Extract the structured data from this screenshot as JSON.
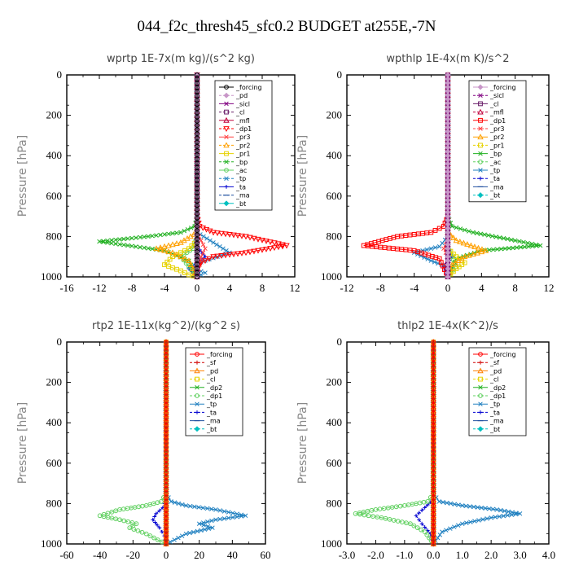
{
  "figure": {
    "title": "044_f2c_thresh45_sfc0.2  BUDGET at255E,-7N"
  },
  "chart_data": [
    {
      "type": "line",
      "title": "wprtp  1E-7x(m kg)/(s^2 kg)",
      "ylabel": "Pressure [hPa]",
      "xlim": [
        -16,
        12
      ],
      "ylim": [
        1000,
        0
      ],
      "y_inverted": true,
      "xticks": [
        "-16",
        "-12",
        "-8",
        "-4",
        "0",
        "4",
        "8",
        "12"
      ],
      "yticks": [
        "0",
        "200",
        "400",
        "600",
        "800",
        "1000"
      ],
      "legend_position": "top-right",
      "series": [
        {
          "name": "_forcing",
          "color": "#000000",
          "marker": "circle",
          "x": [
            0,
            0,
            0,
            0,
            0
          ],
          "y": [
            0,
            250,
            500,
            750,
            1000
          ]
        },
        {
          "name": "_pd",
          "color": "#c896c8",
          "marker": "diamond",
          "x": [
            0,
            0,
            0,
            0
          ],
          "y": [
            0,
            400,
            800,
            1000
          ]
        },
        {
          "name": "_sicl",
          "color": "#800080",
          "marker": "x",
          "x": [
            0,
            0,
            0,
            0
          ],
          "y": [
            0,
            400,
            800,
            1000
          ]
        },
        {
          "name": "_cl",
          "color": "#6a1e6a",
          "marker": "square",
          "x": [
            0,
            0,
            0,
            0
          ],
          "y": [
            0,
            400,
            800,
            1000
          ]
        },
        {
          "name": "_mfl",
          "color": "#c0003c",
          "marker": "triangle-up",
          "x": [
            0,
            0,
            0,
            0
          ],
          "y": [
            0,
            400,
            800,
            1000
          ]
        },
        {
          "name": "_dp1",
          "color": "#ff0000",
          "marker": "triangle-down",
          "x": [
            0,
            0,
            0.3,
            2,
            6,
            11,
            6,
            2,
            0.5,
            0,
            0
          ],
          "y": [
            0,
            700,
            750,
            780,
            800,
            845,
            880,
            900,
            930,
            960,
            1000
          ]
        },
        {
          "name": "_pr3",
          "color": "#ff4040",
          "marker": "x",
          "x": [
            0,
            0,
            0.5,
            1,
            0.5,
            0
          ],
          "y": [
            0,
            780,
            820,
            860,
            900,
            1000
          ]
        },
        {
          "name": "_pr2",
          "color": "#ffa000",
          "marker": "triangle-up",
          "x": [
            0,
            0,
            -2,
            -5,
            -3,
            -1,
            0
          ],
          "y": [
            0,
            780,
            830,
            860,
            880,
            920,
            1000
          ]
        },
        {
          "name": "_pr1",
          "color": "#e6d200",
          "marker": "square",
          "x": [
            0,
            0,
            -1,
            -3,
            -4,
            -2,
            -1,
            0
          ],
          "y": [
            0,
            820,
            860,
            900,
            940,
            970,
            990,
            1000
          ]
        },
        {
          "name": "_bp",
          "color": "#20b020",
          "marker": "x",
          "x": [
            0,
            0,
            -0.3,
            -2,
            -6,
            -12,
            -4,
            -1,
            0
          ],
          "y": [
            0,
            700,
            750,
            780,
            800,
            825,
            870,
            920,
            1000
          ]
        },
        {
          "name": "_ac",
          "color": "#60d060",
          "marker": "circle",
          "x": [
            0,
            0,
            -0.5,
            -2,
            -1,
            0
          ],
          "y": [
            0,
            800,
            860,
            900,
            950,
            1000
          ]
        },
        {
          "name": "_tp",
          "color": "#2080c0",
          "marker": "x",
          "x": [
            0,
            0,
            2,
            4,
            1,
            -1,
            1,
            0
          ],
          "y": [
            0,
            780,
            830,
            880,
            920,
            950,
            980,
            1000
          ]
        },
        {
          "name": "_ta",
          "color": "#0000d0",
          "marker": "plus",
          "x": [
            0,
            0,
            1,
            -1,
            0
          ],
          "y": [
            0,
            850,
            900,
            960,
            1000
          ]
        },
        {
          "name": "_ma",
          "color": "#2050a0",
          "marker": "dash",
          "x": [
            0,
            0,
            0,
            0
          ],
          "y": [
            0,
            400,
            800,
            1000
          ]
        },
        {
          "name": "_bt",
          "color": "#00c0c0",
          "marker": "diamond",
          "x": [
            0,
            0,
            0,
            0
          ],
          "y": [
            0,
            400,
            800,
            1000
          ]
        }
      ]
    },
    {
      "type": "line",
      "title": "wpthlp  1E-4x(m K)/s^2",
      "ylabel": "Pressure [hPa]",
      "xlim": [
        -12,
        12
      ],
      "ylim": [
        1000,
        0
      ],
      "y_inverted": true,
      "xticks": [
        "-12",
        "-8",
        "-4",
        "0",
        "4",
        "8",
        "12"
      ],
      "yticks": [
        "0",
        "200",
        "400",
        "600",
        "800",
        "1000"
      ],
      "legend_position": "top-right",
      "series": [
        {
          "name": "_forcing",
          "color": "#c896c8",
          "marker": "diamond",
          "x": [
            0,
            0,
            0,
            0
          ],
          "y": [
            0,
            400,
            800,
            1000
          ]
        },
        {
          "name": "_sicl",
          "color": "#800080",
          "marker": "x",
          "x": [
            0,
            0,
            0,
            0
          ],
          "y": [
            0,
            400,
            800,
            1000
          ]
        },
        {
          "name": "_cl",
          "color": "#6a1e6a",
          "marker": "square",
          "x": [
            0,
            0,
            0,
            0
          ],
          "y": [
            0,
            400,
            800,
            1000
          ]
        },
        {
          "name": "_mfl",
          "color": "#c0003c",
          "marker": "triangle-up",
          "x": [
            0,
            0,
            0,
            0
          ],
          "y": [
            0,
            400,
            800,
            1000
          ]
        },
        {
          "name": "_dp1",
          "color": "#ff0000",
          "marker": "square",
          "x": [
            0,
            0,
            -0.5,
            -2,
            -6,
            -10,
            -4,
            -1,
            0
          ],
          "y": [
            0,
            700,
            750,
            780,
            800,
            845,
            870,
            910,
            1000
          ]
        },
        {
          "name": "_pr3",
          "color": "#ff4040",
          "marker": "x",
          "x": [
            0,
            0,
            -0.5,
            0,
            0
          ],
          "y": [
            0,
            820,
            860,
            900,
            1000
          ]
        },
        {
          "name": "_pr2",
          "color": "#ffa000",
          "marker": "triangle-up",
          "x": [
            0,
            0,
            1,
            4.5,
            2,
            0.5,
            0
          ],
          "y": [
            0,
            780,
            820,
            870,
            900,
            940,
            1000
          ]
        },
        {
          "name": "_pr1",
          "color": "#e6d200",
          "marker": "square",
          "x": [
            0,
            0,
            1,
            2,
            1,
            0
          ],
          "y": [
            0,
            860,
            900,
            930,
            960,
            1000
          ]
        },
        {
          "name": "_bp",
          "color": "#20b020",
          "marker": "x",
          "x": [
            0,
            0,
            0.5,
            3,
            8,
            11,
            4,
            1,
            0
          ],
          "y": [
            0,
            700,
            750,
            780,
            820,
            845,
            870,
            910,
            1000
          ]
        },
        {
          "name": "_ac",
          "color": "#60d060",
          "marker": "circle",
          "x": [
            0,
            0,
            0.5,
            1,
            0
          ],
          "y": [
            0,
            850,
            900,
            950,
            1000
          ]
        },
        {
          "name": "_tp",
          "color": "#2080c0",
          "marker": "x",
          "x": [
            0,
            0,
            -1,
            -4,
            -2,
            0.5,
            0
          ],
          "y": [
            0,
            800,
            850,
            880,
            920,
            960,
            1000
          ]
        },
        {
          "name": "_ta",
          "color": "#0000d0",
          "marker": "plus",
          "x": [
            0,
            0,
            0.5,
            -0.5,
            0
          ],
          "y": [
            0,
            850,
            900,
            950,
            1000
          ]
        },
        {
          "name": "_ma",
          "color": "#2050a0",
          "marker": "dash",
          "x": [
            0,
            0,
            0,
            0
          ],
          "y": [
            0,
            400,
            800,
            1000
          ]
        },
        {
          "name": "_bt",
          "color": "#00c0c0",
          "marker": "diamond",
          "x": [
            0,
            0,
            0,
            0
          ],
          "y": [
            0,
            400,
            800,
            1000
          ]
        }
      ]
    },
    {
      "type": "line",
      "title": "rtp2  1E-11x(kg^2)/(kg^2 s)",
      "ylabel": "Pressure [hPa]",
      "xlim": [
        -60,
        60
      ],
      "ylim": [
        1000,
        0
      ],
      "y_inverted": true,
      "xticks": [
        "-60",
        "-40",
        "-20",
        "0",
        "20",
        "40",
        "60"
      ],
      "yticks": [
        "0",
        "200",
        "400",
        "600",
        "800",
        "1000"
      ],
      "legend_position": "top-right",
      "series": [
        {
          "name": "_forcing",
          "color": "#ff0000",
          "marker": "circle",
          "x": [
            0,
            0,
            0,
            0,
            0
          ],
          "y": [
            0,
            250,
            500,
            750,
            1000
          ]
        },
        {
          "name": "_sf",
          "color": "#d00000",
          "marker": "plus",
          "x": [
            0,
            0,
            0,
            0
          ],
          "y": [
            0,
            400,
            800,
            1000
          ]
        },
        {
          "name": "_pd",
          "color": "#ff8000",
          "marker": "triangle-up",
          "x": [
            0,
            0,
            0,
            0
          ],
          "y": [
            0,
            400,
            800,
            1000
          ]
        },
        {
          "name": "_cl",
          "color": "#e6d200",
          "marker": "square",
          "x": [
            0,
            0,
            0,
            0
          ],
          "y": [
            0,
            400,
            800,
            1000
          ]
        },
        {
          "name": "_dp2",
          "color": "#20b020",
          "marker": "x",
          "x": [
            0,
            0,
            0,
            0
          ],
          "y": [
            0,
            400,
            800,
            1000
          ]
        },
        {
          "name": "_dp1",
          "color": "#60d060",
          "marker": "circle",
          "x": [
            0,
            0,
            -3,
            -12,
            -28,
            -40,
            -28,
            -18,
            -22,
            -12,
            -5,
            0
          ],
          "y": [
            0,
            750,
            790,
            810,
            830,
            860,
            880,
            900,
            920,
            950,
            980,
            1000
          ]
        },
        {
          "name": "_tp",
          "color": "#2080c0",
          "marker": "x",
          "x": [
            0,
            0,
            3,
            12,
            30,
            48,
            30,
            20,
            28,
            12,
            5,
            0
          ],
          "y": [
            0,
            750,
            790,
            810,
            830,
            860,
            880,
            900,
            920,
            950,
            980,
            1000
          ]
        },
        {
          "name": "_ta",
          "color": "#0000d0",
          "marker": "plus",
          "x": [
            0,
            0,
            -2,
            -6,
            -8,
            -4,
            -1,
            0
          ],
          "y": [
            0,
            780,
            820,
            850,
            880,
            920,
            960,
            1000
          ]
        },
        {
          "name": "_ma",
          "color": "#2050a0",
          "marker": "dash",
          "x": [
            0,
            0,
            0,
            0
          ],
          "y": [
            0,
            400,
            800,
            1000
          ]
        },
        {
          "name": "_bt",
          "color": "#00c0c0",
          "marker": "diamond",
          "x": [
            0,
            0,
            0,
            0
          ],
          "y": [
            0,
            400,
            800,
            1000
          ]
        }
      ]
    },
    {
      "type": "line",
      "title": "thlp2  1E-4x(K^2)/s",
      "ylabel": "Pressure [hPa]",
      "xlim": [
        -3.0,
        4.0
      ],
      "ylim": [
        1000,
        0
      ],
      "y_inverted": true,
      "xticks": [
        "-3.0",
        "-2.0",
        "-1.0",
        "0.0",
        "1.0",
        "2.0",
        "3.0",
        "4.0"
      ],
      "yticks": [
        "0",
        "200",
        "400",
        "600",
        "800",
        "1000"
      ],
      "legend_position": "top-right",
      "series": [
        {
          "name": "_forcing",
          "color": "#ff0000",
          "marker": "circle",
          "x": [
            0,
            0,
            0,
            0,
            0
          ],
          "y": [
            0,
            250,
            500,
            750,
            1000
          ]
        },
        {
          "name": "_sf",
          "color": "#d00000",
          "marker": "plus",
          "x": [
            0,
            0,
            0,
            0
          ],
          "y": [
            0,
            400,
            800,
            1000
          ]
        },
        {
          "name": "_pd",
          "color": "#ff8000",
          "marker": "triangle-up",
          "x": [
            0,
            0,
            0,
            0
          ],
          "y": [
            0,
            400,
            800,
            1000
          ]
        },
        {
          "name": "_cl",
          "color": "#e6d200",
          "marker": "square",
          "x": [
            0,
            0,
            0,
            0
          ],
          "y": [
            0,
            400,
            800,
            1000
          ]
        },
        {
          "name": "_dp2",
          "color": "#20b020",
          "marker": "x",
          "x": [
            0,
            0,
            0,
            0
          ],
          "y": [
            0,
            400,
            800,
            1000
          ]
        },
        {
          "name": "_dp1",
          "color": "#60d060",
          "marker": "circle",
          "x": [
            0,
            0,
            -0.2,
            -1,
            -2,
            -2.7,
            -1.8,
            -0.8,
            -0.3,
            0
          ],
          "y": [
            0,
            750,
            790,
            810,
            830,
            850,
            870,
            900,
            940,
            1000
          ]
        },
        {
          "name": "_tp",
          "color": "#2080c0",
          "marker": "x",
          "x": [
            0,
            0,
            0.2,
            1,
            2.2,
            3,
            2,
            1,
            0.3,
            0
          ],
          "y": [
            0,
            750,
            790,
            810,
            830,
            850,
            870,
            900,
            940,
            1000
          ]
        },
        {
          "name": "_ta",
          "color": "#0000d0",
          "marker": "plus",
          "x": [
            0,
            0,
            -0.3,
            -0.6,
            -0.4,
            -0.1,
            0
          ],
          "y": [
            0,
            780,
            820,
            860,
            900,
            950,
            1000
          ]
        },
        {
          "name": "_ma",
          "color": "#2050a0",
          "marker": "dash",
          "x": [
            0,
            0,
            0,
            0
          ],
          "y": [
            0,
            400,
            800,
            1000
          ]
        },
        {
          "name": "_bt",
          "color": "#00c0c0",
          "marker": "diamond",
          "x": [
            0,
            0,
            0,
            0
          ],
          "y": [
            0,
            400,
            800,
            1000
          ]
        }
      ]
    }
  ]
}
